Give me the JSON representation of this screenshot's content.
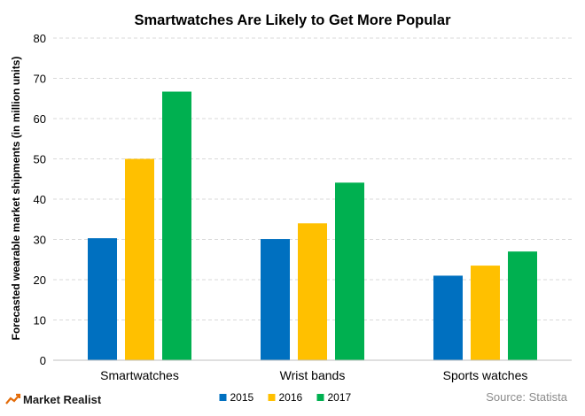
{
  "brand": {
    "name": "Market Realist",
    "icon": "market-realist-logo-icon"
  },
  "source": "Source: Statista",
  "colors": {
    "2015": "#0070c0",
    "2016": "#ffc000",
    "2017": "#00b050",
    "grid": "#d9d9d9",
    "text": "#000000"
  },
  "chart_data": {
    "type": "bar",
    "title": "Smartwatches Are Likely to Get More Popular",
    "xlabel": "",
    "ylabel": "Forecasted wearable market shipments (in million units)",
    "categories": [
      "Smartwatches",
      "Wrist bands",
      "Sports watches"
    ],
    "series": [
      {
        "name": "2015",
        "color": "#0070c0",
        "values": [
          30.3,
          30.1,
          21.0
        ]
      },
      {
        "name": "2016",
        "color": "#ffc000",
        "values": [
          50.0,
          34.0,
          23.5
        ]
      },
      {
        "name": "2017",
        "color": "#00b050",
        "values": [
          66.7,
          44.1,
          27.0
        ]
      }
    ],
    "ylim": [
      0,
      80
    ],
    "yticks": [
      "0",
      "10",
      "20",
      "30",
      "40",
      "50",
      "60",
      "70",
      "80"
    ],
    "grid": true,
    "grid_style": "dashed horizontal",
    "legend_position": "bottom"
  }
}
